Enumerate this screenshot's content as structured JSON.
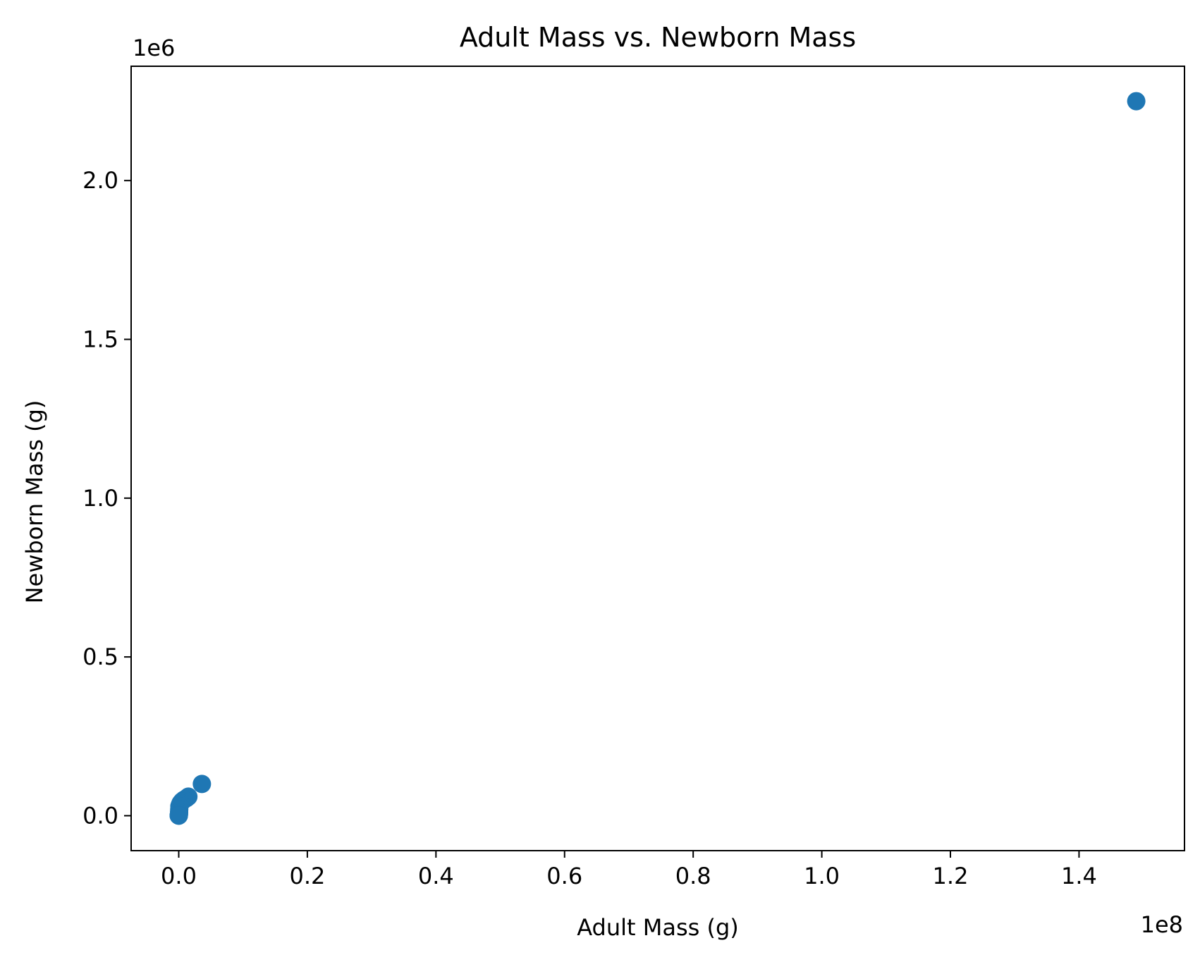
{
  "chart_data": {
    "type": "scatter",
    "title": "Adult Mass vs. Newborn Mass",
    "xlabel": "Adult Mass (g)",
    "ylabel": "Newborn Mass (g)",
    "x_offset_label": "1e8",
    "y_offset_label": "1e6",
    "x_scale": 100000000,
    "y_scale": 1000000,
    "xlim": [
      -0.074,
      1.564
    ],
    "ylim": [
      -0.11,
      2.36
    ],
    "x_ticks": [
      0.0,
      0.2,
      0.4,
      0.6,
      0.8,
      1.0,
      1.2,
      1.4
    ],
    "x_tick_labels": [
      "0.0",
      "0.2",
      "0.4",
      "0.6",
      "0.8",
      "1.0",
      "1.2",
      "1.4"
    ],
    "y_ticks": [
      0.0,
      0.5,
      1.0,
      1.5,
      2.0
    ],
    "y_tick_labels": [
      "0.0",
      "0.5",
      "1.0",
      "1.5",
      "2.0"
    ],
    "grid": false,
    "marker_color": "#1f77b4",
    "points": [
      {
        "x": 1.489,
        "y": 2.25
      },
      {
        "x": 0.036,
        "y": 0.1
      },
      {
        "x": 0.015,
        "y": 0.06
      },
      {
        "x": 0.012,
        "y": 0.055
      },
      {
        "x": 0.008,
        "y": 0.05
      },
      {
        "x": 0.005,
        "y": 0.045
      },
      {
        "x": 0.003,
        "y": 0.04
      },
      {
        "x": 0.002,
        "y": 0.035
      },
      {
        "x": 0.001,
        "y": 0.03
      },
      {
        "x": 0.0008,
        "y": 0.02
      },
      {
        "x": 0.0006,
        "y": 0.012
      },
      {
        "x": 0.0005,
        "y": 0.008
      },
      {
        "x": 0.0003,
        "y": 0.004
      },
      {
        "x": 0.0002,
        "y": 0.002
      },
      {
        "x": 0.0001,
        "y": 0.001
      },
      {
        "x": 5e-05,
        "y": 0.0005
      },
      {
        "x": 2e-05,
        "y": 0.0002
      }
    ]
  }
}
